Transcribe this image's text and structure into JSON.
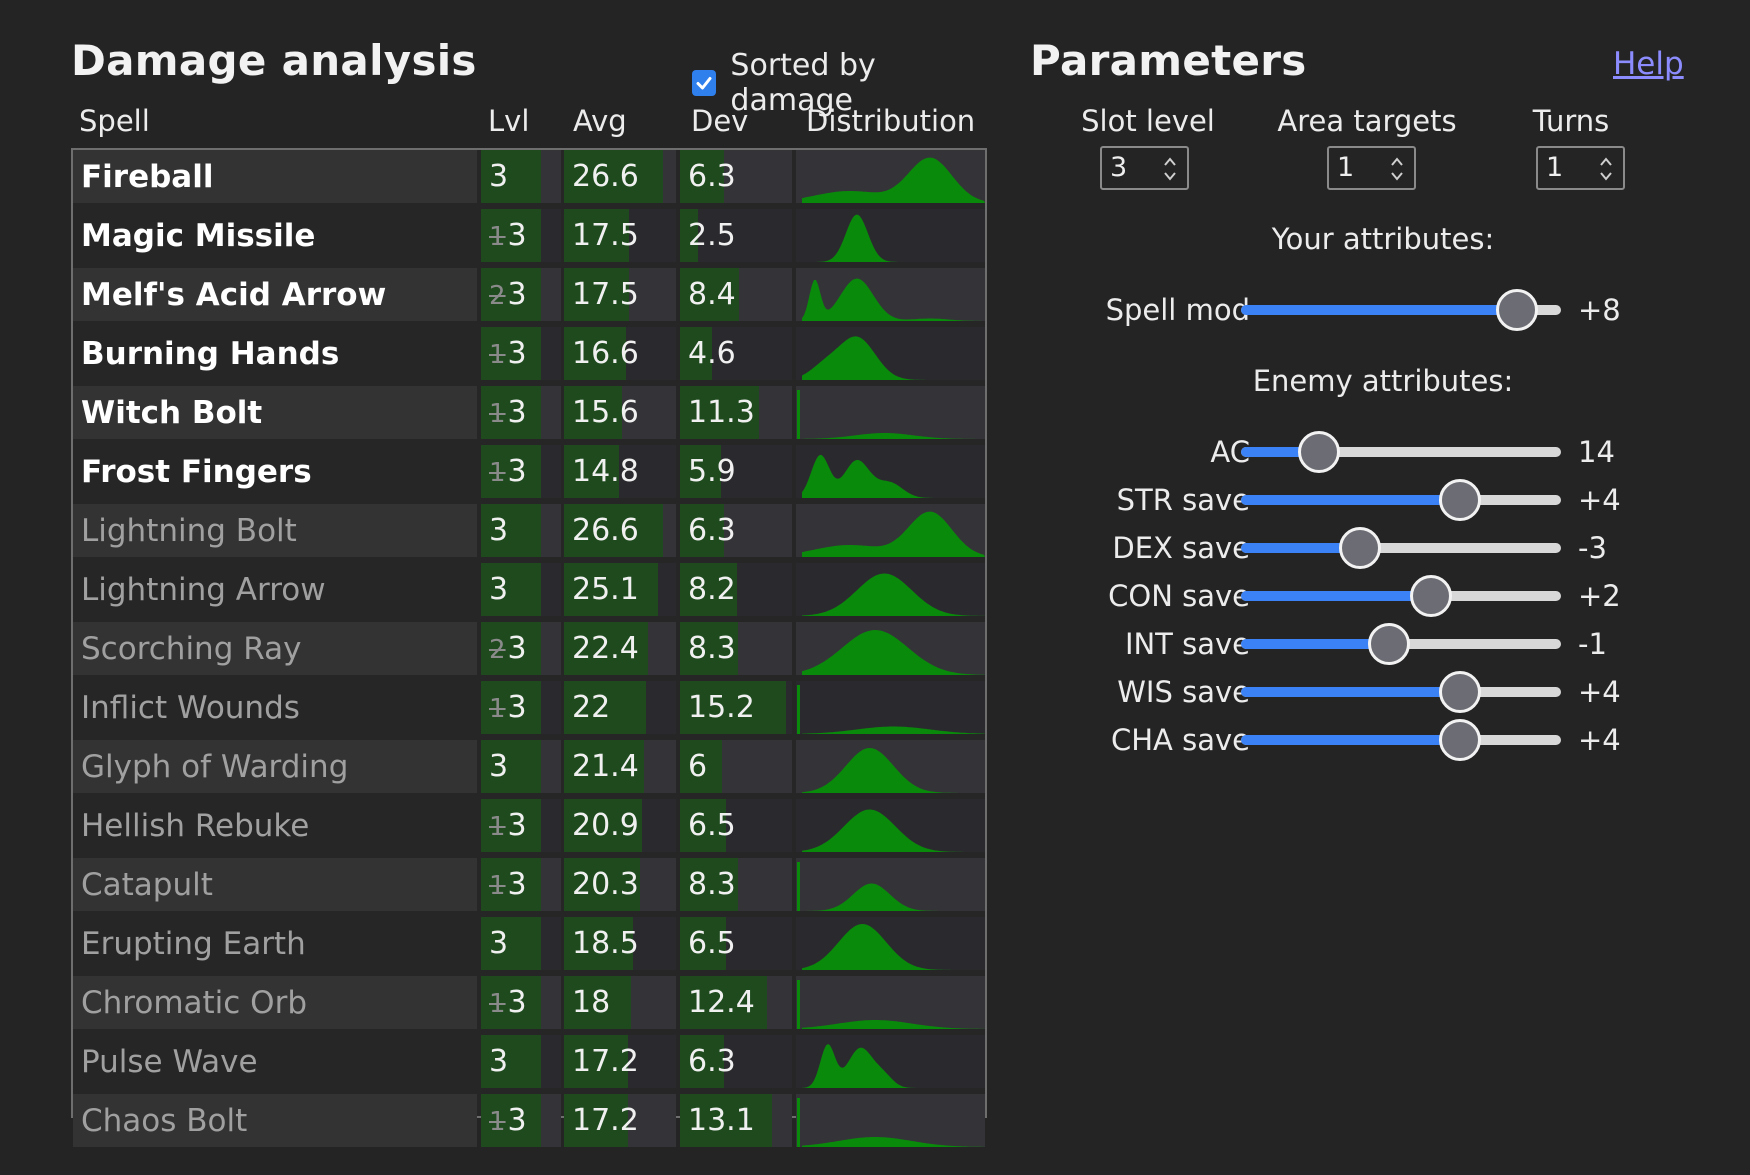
{
  "damage_analysis": {
    "title": "Damage analysis",
    "sorted_label": "Sorted by damage",
    "sorted_checked": true,
    "columns": {
      "spell": "Spell",
      "lvl": "Lvl",
      "avg": "Avg",
      "dev": "Dev",
      "dist": "Distribution"
    },
    "rows": [
      {
        "name": "Fireball",
        "active": true,
        "base": "",
        "lvl": "3",
        "avg": "26.6",
        "dev": "6.3"
      },
      {
        "name": "Magic Missile",
        "active": true,
        "base": "1",
        "lvl": "3",
        "avg": "17.5",
        "dev": "2.5"
      },
      {
        "name": "Melf's Acid Arrow",
        "active": true,
        "base": "2",
        "lvl": "3",
        "avg": "17.5",
        "dev": "8.4"
      },
      {
        "name": "Burning Hands",
        "active": true,
        "base": "1",
        "lvl": "3",
        "avg": "16.6",
        "dev": "4.6"
      },
      {
        "name": "Witch Bolt",
        "active": true,
        "base": "1",
        "lvl": "3",
        "avg": "15.6",
        "dev": "11.3"
      },
      {
        "name": "Frost Fingers",
        "active": true,
        "base": "1",
        "lvl": "3",
        "avg": "14.8",
        "dev": "5.9"
      },
      {
        "name": "Lightning Bolt",
        "active": false,
        "base": "",
        "lvl": "3",
        "avg": "26.6",
        "dev": "6.3"
      },
      {
        "name": "Lightning Arrow",
        "active": false,
        "base": "",
        "lvl": "3",
        "avg": "25.1",
        "dev": "8.2"
      },
      {
        "name": "Scorching Ray",
        "active": false,
        "base": "2",
        "lvl": "3",
        "avg": "22.4",
        "dev": "8.3"
      },
      {
        "name": "Inflict Wounds",
        "active": false,
        "base": "1",
        "lvl": "3",
        "avg": "22",
        "dev": "15.2"
      },
      {
        "name": "Glyph of Warding",
        "active": false,
        "base": "",
        "lvl": "3",
        "avg": "21.4",
        "dev": "6"
      },
      {
        "name": "Hellish Rebuke",
        "active": false,
        "base": "1",
        "lvl": "3",
        "avg": "20.9",
        "dev": "6.5"
      },
      {
        "name": "Catapult",
        "active": false,
        "base": "1",
        "lvl": "3",
        "avg": "20.3",
        "dev": "8.3"
      },
      {
        "name": "Erupting Earth",
        "active": false,
        "base": "",
        "lvl": "3",
        "avg": "18.5",
        "dev": "6.5"
      },
      {
        "name": "Chromatic Orb",
        "active": false,
        "base": "1",
        "lvl": "3",
        "avg": "18",
        "dev": "12.4"
      },
      {
        "name": "Pulse Wave",
        "active": false,
        "base": "",
        "lvl": "3",
        "avg": "17.2",
        "dev": "6.3"
      },
      {
        "name": "Chaos Bolt",
        "active": false,
        "base": "1",
        "lvl": "3",
        "avg": "17.2",
        "dev": "13.1"
      }
    ]
  },
  "parameters": {
    "title": "Parameters",
    "help_label": "Help",
    "spinners": [
      {
        "label": "Slot level",
        "value": "3"
      },
      {
        "label": "Area targets",
        "value": "1"
      },
      {
        "label": "Turns",
        "value": "1"
      }
    ],
    "your_attributes_label": "Your attributes:",
    "enemy_attributes_label": "Enemy attributes:",
    "your_sliders": [
      {
        "label": "Spell mod",
        "value": "+8",
        "fraction": 0.86
      }
    ],
    "enemy_sliders": [
      {
        "label": "AC",
        "value": "14",
        "fraction": 0.24
      },
      {
        "label": "STR save",
        "value": "+4",
        "fraction": 0.68
      },
      {
        "label": "DEX save",
        "value": "-3",
        "fraction": 0.37
      },
      {
        "label": "CON save",
        "value": "+2",
        "fraction": 0.59
      },
      {
        "label": "INT save",
        "value": "-1",
        "fraction": 0.46
      },
      {
        "label": "WIS save",
        "value": "+4",
        "fraction": 0.68
      },
      {
        "label": "CHA save",
        "value": "+4",
        "fraction": 0.68
      }
    ]
  },
  "colors": {
    "accent": "#3b82f6",
    "histogram": "#0a8a0a",
    "bar_fill": "#1e4a1e",
    "link": "#8c8cff"
  }
}
